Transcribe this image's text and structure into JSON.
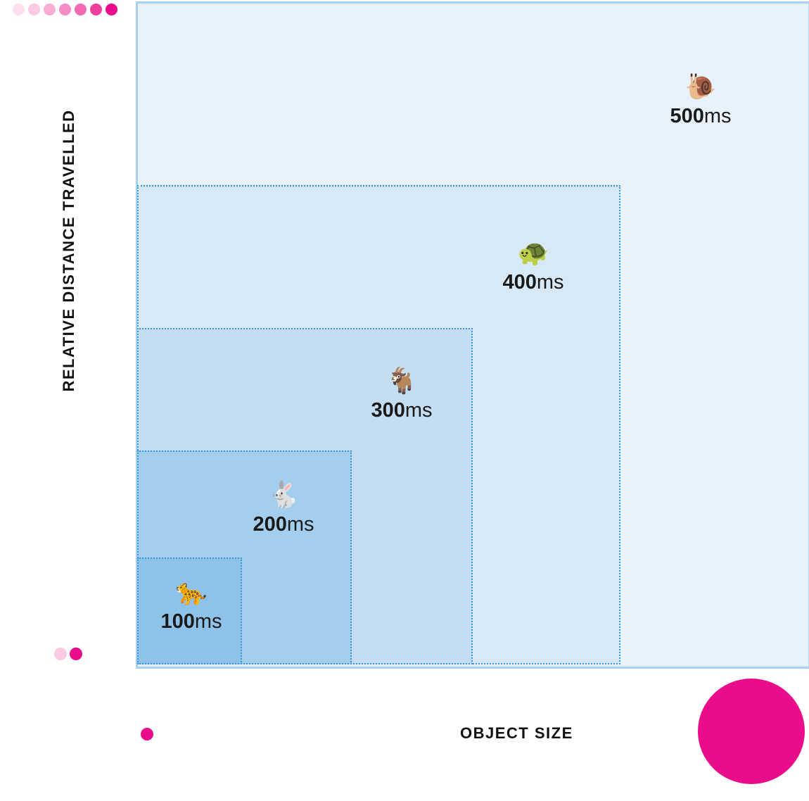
{
  "colors": {
    "pink_strong": "#e90c8b",
    "pink_ramp": [
      "#fde0ef",
      "#fbc9e3",
      "#f8abd3",
      "#f68cc3",
      "#f36bb1",
      "#ef3f9c",
      "#e90c8b"
    ],
    "outer_fill": "#e8f2fb",
    "outer_border": "#a9d0ee",
    "dotted_border": "#3a97d8"
  },
  "axes": {
    "y_label": "RELATIVE DISTANCE TRAVELLED",
    "x_label": "OBJECT SIZE"
  },
  "durations": [
    {
      "icon": "cheetah-icon",
      "emoji": "🐆",
      "value": "100",
      "unit": "ms"
    },
    {
      "icon": "rabbit-icon",
      "emoji": "🐇",
      "value": "200",
      "unit": "ms"
    },
    {
      "icon": "goat-icon",
      "emoji": "🐐",
      "value": "300",
      "unit": "ms"
    },
    {
      "icon": "turtle-icon",
      "emoji": "🐢",
      "value": "400",
      "unit": "ms"
    },
    {
      "icon": "snail-icon",
      "emoji": "🐌",
      "value": "500",
      "unit": "ms"
    }
  ]
}
